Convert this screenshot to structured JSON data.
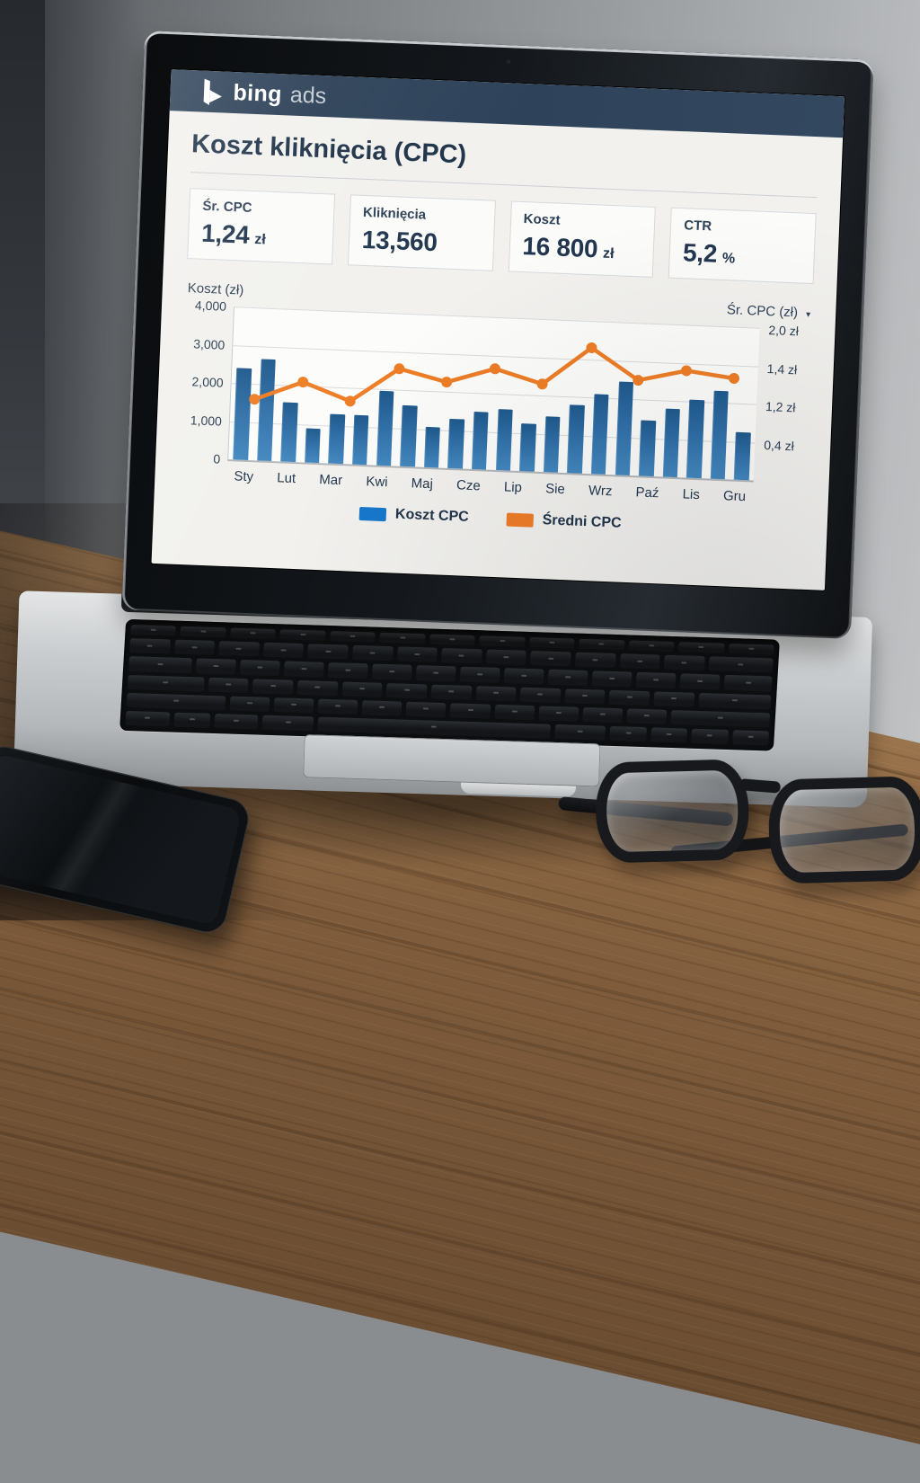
{
  "screen": {
    "brand": {
      "bing": "bing",
      "ads": "ads"
    },
    "page_title": "Koszt kliknięcia (CPC)",
    "cards": [
      {
        "label": "Śr. CPC",
        "value": "1,24",
        "unit": "zł"
      },
      {
        "label": "Kliknięcia",
        "value": "13,560",
        "unit": ""
      },
      {
        "label": "Koszt",
        "value": "16 800",
        "unit": "zł"
      },
      {
        "label": "CTR",
        "value": "5,2",
        "unit": "%"
      }
    ],
    "icons": {
      "chevron_down": "▾"
    },
    "colors": {
      "header_bg": "#2e435a",
      "title_text": "#1f3349",
      "bar_blue": "#1878cc",
      "line_orange": "#ee7d26",
      "page_bg": "#f2f1ee"
    }
  },
  "chart_data": {
    "type": "bar+line",
    "title": "Koszt kliknięcia (CPC)",
    "left_axis": {
      "label": "Koszt (zł)",
      "range": [
        0,
        4000
      ],
      "ticks": [
        "4,000",
        "3,000",
        "2,000",
        "1,000",
        "0"
      ],
      "grid": true
    },
    "right_axis": {
      "label": "Śr. CPC (zł)",
      "ticks": [
        "2,0 zł",
        "1,4 zł",
        "1,2 zł",
        "0,4 zł"
      ],
      "has_dropdown": true
    },
    "x_labels": [
      "Sty",
      "Lut",
      "Mar",
      "Kwi",
      "Maj",
      "Cze",
      "Lip",
      "Sie",
      "Wrz",
      "Paź",
      "Lis",
      "Gru"
    ],
    "series": [
      {
        "name": "Koszt CPC",
        "type": "bar",
        "color": "#1878cc",
        "axis": "left",
        "values": [
          2400,
          2650,
          1550,
          900,
          1300,
          1300,
          1950,
          1600,
          1050,
          1300,
          1500,
          1600,
          1250,
          1450,
          1800,
          2100,
          2450,
          1450,
          1800,
          2050,
          2300,
          1250
        ]
      },
      {
        "name": "Średni CPC",
        "type": "line",
        "color": "#ee7d26",
        "axis": "right",
        "value_scale": "left-axis units (0–4000), right axis ticks sit on the same gridlines",
        "values_on_left_scale": [
          1600,
          2100,
          1650,
          2550,
          2250,
          2650,
          2300,
          3300,
          2500,
          2800,
          2650
        ]
      }
    ],
    "legend": {
      "position": "bottom",
      "entries": [
        "Koszt CPC",
        "Średni CPC"
      ]
    }
  }
}
